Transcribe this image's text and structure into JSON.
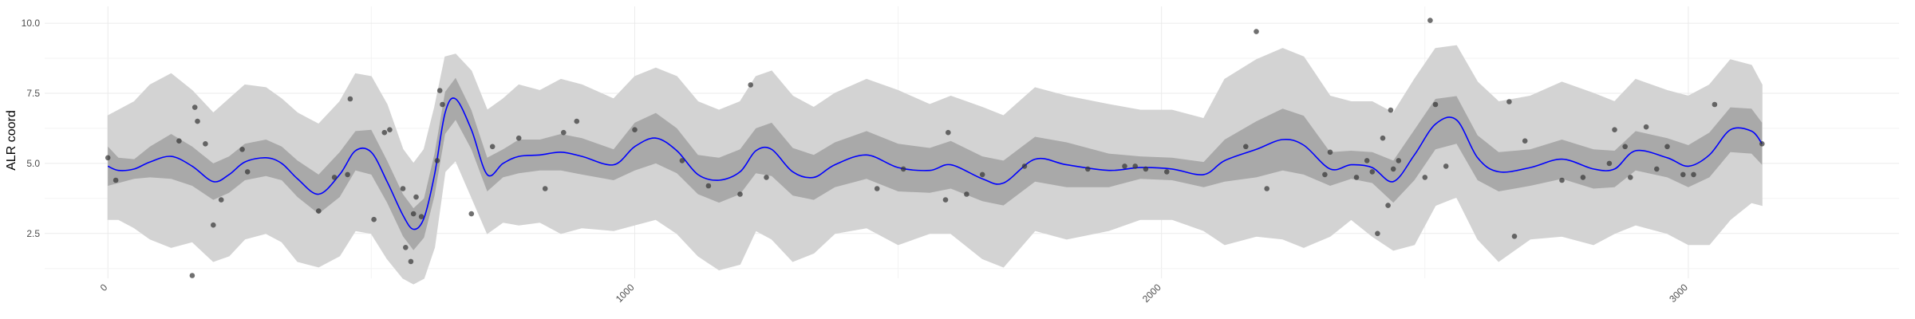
{
  "chart_data": {
    "type": "line",
    "title": "",
    "xlabel": "",
    "ylabel": "ALR coord",
    "xlim": [
      -120,
      3400
    ],
    "ylim": [
      0.9,
      10.6
    ],
    "grid": true,
    "x_ticks": [
      0,
      1000,
      2000,
      3000
    ],
    "x_tick_labels": [
      "0",
      "1000",
      "2000",
      "3000"
    ],
    "y_ticks": [
      2.5,
      5.0,
      7.5,
      10.0
    ],
    "y_tick_labels": [
      "2.5",
      "5.0",
      "7.5",
      "10.0"
    ],
    "colors": {
      "mean_line": "#0000ff",
      "inner_band": "#a9a9a9",
      "outer_band": "#d3d3d3",
      "points": "#333333",
      "grid": "#ebebeb"
    },
    "series": [
      {
        "kind": "mean",
        "x": [
          0,
          20,
          50,
          80,
          120,
          160,
          200,
          230,
          260,
          300,
          330,
          360,
          400,
          440,
          470,
          500,
          530,
          560,
          580,
          600,
          620,
          640,
          660,
          690,
          720,
          750,
          780,
          820,
          860,
          900,
          960,
          1000,
          1040,
          1080,
          1120,
          1160,
          1200,
          1230,
          1260,
          1300,
          1340,
          1380,
          1440,
          1500,
          1560,
          1600,
          1660,
          1700,
          1760,
          1820,
          1900,
          1960,
          2020,
          2080,
          2120,
          2180,
          2230,
          2270,
          2320,
          2360,
          2400,
          2440,
          2480,
          2520,
          2560,
          2600,
          2640,
          2700,
          2760,
          2820,
          2860,
          2900,
          2960,
          3000,
          3040,
          3080,
          3120,
          3140
        ],
        "y": [
          4.9,
          4.75,
          4.8,
          5.05,
          5.25,
          4.9,
          4.35,
          4.6,
          5.05,
          5.2,
          5.0,
          4.45,
          3.9,
          4.6,
          5.45,
          5.4,
          4.35,
          3.15,
          2.65,
          3.05,
          4.6,
          6.8,
          7.3,
          6.2,
          4.6,
          5.0,
          5.25,
          5.3,
          5.4,
          5.25,
          4.95,
          5.6,
          5.9,
          5.45,
          4.6,
          4.4,
          4.7,
          5.45,
          5.5,
          4.7,
          4.5,
          4.95,
          5.3,
          4.85,
          4.75,
          4.95,
          4.45,
          4.3,
          5.15,
          4.95,
          4.75,
          4.85,
          4.8,
          4.6,
          5.1,
          5.5,
          5.85,
          5.65,
          4.8,
          4.95,
          4.85,
          4.35,
          5.3,
          6.4,
          6.55,
          5.2,
          4.7,
          4.85,
          5.15,
          4.8,
          4.8,
          5.45,
          5.2,
          4.9,
          5.3,
          6.2,
          6.15,
          5.7
        ]
      },
      {
        "kind": "inner_band",
        "x": [
          0,
          20,
          50,
          80,
          120,
          160,
          200,
          230,
          260,
          300,
          330,
          360,
          400,
          440,
          470,
          500,
          530,
          560,
          580,
          600,
          620,
          640,
          660,
          690,
          720,
          750,
          780,
          820,
          860,
          900,
          960,
          1000,
          1040,
          1080,
          1120,
          1160,
          1200,
          1230,
          1260,
          1300,
          1340,
          1380,
          1440,
          1500,
          1560,
          1600,
          1660,
          1700,
          1760,
          1820,
          1900,
          1960,
          2020,
          2080,
          2120,
          2180,
          2230,
          2270,
          2320,
          2360,
          2400,
          2440,
          2480,
          2520,
          2560,
          2600,
          2640,
          2700,
          2760,
          2820,
          2860,
          2900,
          2960,
          3000,
          3040,
          3080,
          3120,
          3140
        ],
        "lower": [
          4.2,
          4.3,
          4.45,
          4.5,
          4.45,
          4.2,
          3.7,
          3.95,
          4.4,
          4.55,
          4.4,
          3.8,
          3.2,
          3.8,
          4.75,
          4.6,
          3.6,
          2.4,
          1.9,
          2.35,
          3.85,
          6.05,
          6.55,
          5.5,
          4.0,
          4.5,
          4.65,
          4.75,
          4.75,
          4.6,
          4.4,
          4.75,
          5.0,
          4.65,
          3.9,
          3.6,
          3.9,
          4.65,
          4.55,
          3.85,
          3.7,
          4.15,
          4.45,
          4.0,
          3.95,
          4.1,
          3.65,
          3.5,
          4.35,
          4.15,
          4.15,
          4.45,
          4.4,
          4.15,
          4.35,
          4.5,
          4.75,
          4.6,
          4.2,
          4.45,
          4.3,
          3.6,
          4.4,
          5.5,
          5.7,
          4.4,
          4.0,
          4.2,
          4.45,
          4.1,
          4.15,
          4.75,
          4.5,
          4.15,
          4.5,
          5.4,
          5.35,
          4.95
        ],
        "upper": [
          5.6,
          5.2,
          5.15,
          5.6,
          6.05,
          5.6,
          5.0,
          5.25,
          5.7,
          5.85,
          5.6,
          5.1,
          4.6,
          5.4,
          6.15,
          6.2,
          5.1,
          3.9,
          3.4,
          3.75,
          5.35,
          7.55,
          8.05,
          6.9,
          5.2,
          5.5,
          5.85,
          5.85,
          6.05,
          5.9,
          5.5,
          6.45,
          6.8,
          6.25,
          5.3,
          5.2,
          5.5,
          6.25,
          6.45,
          5.55,
          5.3,
          5.75,
          6.15,
          5.7,
          5.55,
          5.8,
          5.25,
          5.1,
          5.95,
          5.75,
          5.35,
          5.25,
          5.2,
          5.05,
          5.85,
          6.5,
          6.95,
          6.7,
          5.4,
          5.45,
          5.4,
          5.1,
          6.2,
          7.3,
          7.4,
          6.0,
          5.4,
          5.5,
          5.85,
          5.5,
          5.45,
          6.15,
          5.9,
          5.65,
          6.1,
          7.0,
          6.95,
          6.45
        ]
      },
      {
        "kind": "outer_band",
        "x": [
          0,
          20,
          50,
          80,
          120,
          160,
          200,
          230,
          260,
          300,
          330,
          360,
          400,
          440,
          470,
          500,
          530,
          560,
          580,
          600,
          620,
          640,
          660,
          690,
          720,
          750,
          780,
          820,
          860,
          900,
          960,
          1000,
          1040,
          1080,
          1120,
          1160,
          1200,
          1230,
          1260,
          1300,
          1340,
          1380,
          1440,
          1500,
          1560,
          1600,
          1660,
          1700,
          1760,
          1820,
          1900,
          1960,
          2020,
          2080,
          2120,
          2180,
          2230,
          2270,
          2320,
          2360,
          2400,
          2440,
          2480,
          2520,
          2560,
          2600,
          2640,
          2700,
          2760,
          2820,
          2860,
          2900,
          2960,
          3000,
          3040,
          3080,
          3120,
          3140
        ],
        "lower": [
          3.0,
          3.0,
          2.7,
          2.3,
          2.0,
          2.2,
          1.5,
          1.7,
          2.3,
          2.5,
          2.2,
          1.5,
          1.3,
          1.7,
          2.6,
          2.5,
          1.6,
          0.9,
          0.7,
          0.9,
          2.0,
          4.7,
          5.1,
          3.8,
          2.5,
          2.9,
          2.8,
          2.9,
          2.5,
          2.7,
          2.6,
          2.8,
          3.0,
          2.5,
          1.7,
          1.2,
          1.4,
          2.6,
          2.3,
          1.5,
          1.8,
          2.5,
          2.7,
          2.1,
          2.5,
          2.5,
          1.6,
          1.3,
          2.6,
          2.3,
          2.6,
          3.0,
          3.0,
          2.6,
          2.1,
          2.4,
          2.3,
          2.0,
          2.4,
          3.0,
          2.4,
          1.9,
          2.1,
          3.5,
          3.8,
          2.3,
          1.5,
          2.3,
          2.4,
          2.1,
          2.5,
          2.8,
          2.5,
          2.1,
          2.1,
          3.0,
          3.6,
          3.5
        ],
        "upper": [
          6.7,
          6.9,
          7.2,
          7.8,
          8.2,
          7.6,
          6.8,
          7.3,
          7.8,
          7.7,
          7.3,
          6.8,
          6.4,
          7.2,
          8.2,
          8.1,
          7.1,
          5.5,
          5.0,
          5.5,
          7.0,
          8.8,
          8.9,
          8.3,
          6.9,
          7.3,
          7.8,
          7.6,
          8.0,
          7.8,
          7.3,
          8.1,
          8.4,
          8.1,
          7.2,
          6.9,
          7.2,
          8.1,
          8.3,
          7.4,
          7.0,
          7.5,
          8.0,
          7.6,
          7.1,
          7.4,
          7.0,
          6.7,
          7.7,
          7.4,
          7.1,
          6.9,
          6.9,
          6.6,
          8.0,
          8.7,
          9.1,
          8.8,
          7.4,
          7.2,
          7.2,
          6.8,
          8.0,
          9.1,
          9.2,
          7.9,
          7.2,
          7.4,
          7.9,
          7.5,
          7.2,
          8.0,
          7.6,
          7.4,
          7.8,
          8.7,
          8.5,
          7.8
        ]
      },
      {
        "kind": "points",
        "x": [
          0,
          15,
          135,
          160,
          165,
          170,
          185,
          200,
          215,
          255,
          265,
          400,
          430,
          455,
          460,
          505,
          525,
          535,
          560,
          565,
          575,
          580,
          585,
          595,
          625,
          630,
          635,
          690,
          730,
          780,
          830,
          865,
          890,
          1000,
          1090,
          1140,
          1200,
          1220,
          1250,
          1460,
          1510,
          1590,
          1595,
          1630,
          1660,
          1740,
          1860,
          1930,
          1950,
          1970,
          2010,
          2160,
          2180,
          2200,
          2310,
          2320,
          2370,
          2390,
          2400,
          2410,
          2420,
          2430,
          2435,
          2440,
          2450,
          2500,
          2510,
          2520,
          2540,
          2660,
          2670,
          2690,
          2760,
          2800,
          2850,
          2860,
          2880,
          2890,
          2920,
          2940,
          2960,
          2990,
          3010,
          3050,
          3140
        ],
        "y": [
          5.2,
          4.4,
          5.8,
          1.0,
          7.0,
          6.5,
          5.7,
          2.8,
          3.7,
          5.5,
          4.7,
          3.3,
          4.5,
          4.6,
          7.3,
          3.0,
          6.1,
          6.2,
          4.1,
          2.0,
          1.5,
          3.2,
          3.8,
          3.1,
          5.1,
          7.6,
          7.1,
          3.2,
          5.6,
          5.9,
          4.1,
          6.1,
          6.5,
          6.2,
          5.1,
          4.2,
          3.9,
          7.8,
          4.5,
          4.1,
          4.8,
          3.7,
          6.1,
          3.9,
          4.6,
          4.9,
          4.8,
          4.9,
          4.9,
          4.8,
          4.7,
          5.6,
          9.7,
          4.1,
          4.6,
          5.4,
          4.5,
          5.1,
          4.7,
          2.5,
          5.9,
          3.5,
          6.9,
          4.8,
          5.1,
          4.5,
          10.1,
          7.1,
          4.9,
          7.2,
          2.4,
          5.8,
          4.4,
          4.5,
          5.0,
          6.2,
          5.6,
          4.5,
          6.3,
          4.8,
          5.6,
          4.6,
          4.6,
          7.1,
          5.7
        ]
      }
    ]
  }
}
